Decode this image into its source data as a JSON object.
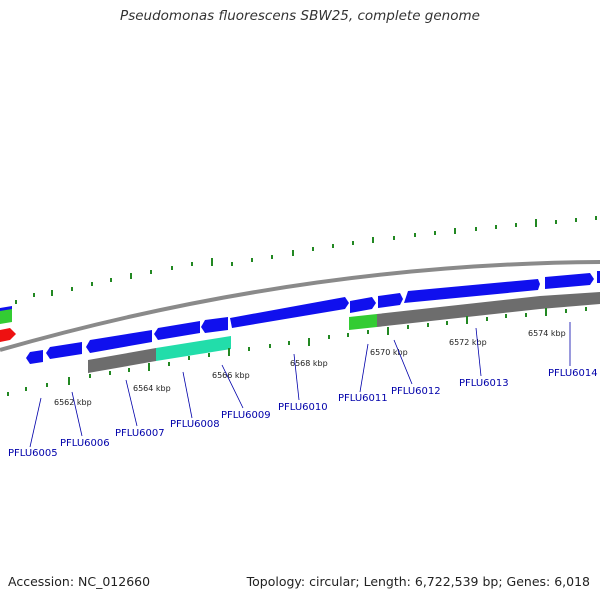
{
  "title": "Pseudomonas fluorescens SBW25, complete genome",
  "footer": {
    "accession": "Accession: NC_012660",
    "summary": "Topology: circular; Length: 6,722,539 bp; Genes: 6,018"
  },
  "scale_labels": [
    "6562 kbp",
    "6564 kbp",
    "6566 kbp",
    "6568 kbp",
    "6570 kbp",
    "6572 kbp",
    "6574 kbp"
  ],
  "genes": [
    "PFLU6005",
    "PFLU6006",
    "PFLU6007",
    "PFLU6008",
    "PFLU6009",
    "PFLU6010",
    "PFLU6011",
    "PFLU6012",
    "PFLU6013",
    "PFLU6014"
  ],
  "colors": {
    "cds": "#1010ee",
    "highlight_green": "#33cc33",
    "highlight_teal": "#22ddaa",
    "red": "#ee1111",
    "rna_gray": "#6d6d6d",
    "backbone": "#8a8a8a",
    "ticks": "#228822",
    "gene_label": "#0000aa"
  }
}
